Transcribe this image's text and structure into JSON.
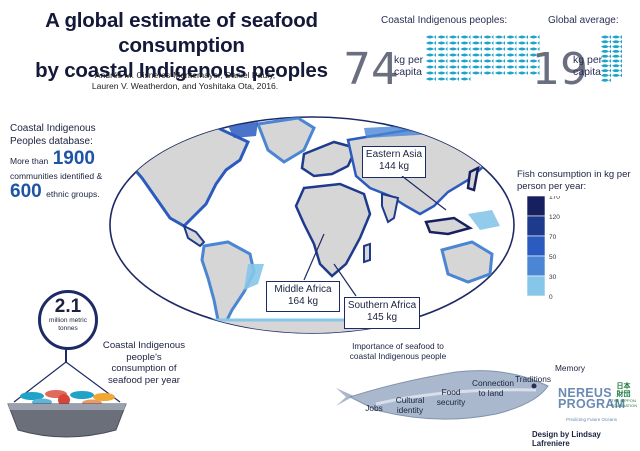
{
  "title_line1": "A global estimate of seafood consumption",
  "title_line2": "by coastal Indigenous peoples",
  "authors_line1": "Andrés M. Cisneros-Montemayor, Daniel Pauly,",
  "authors_line2": "Lauren V. Weatherdon, and Yoshitaka Ota, 2016.",
  "coastal": {
    "label": "Coastal Indigenous peoples:",
    "value": "74",
    "unit_line1": "kg per",
    "unit_line2": "capita"
  },
  "global": {
    "label": "Global average:",
    "value": "19",
    "unit_line1": "kg per",
    "unit_line2": "capita"
  },
  "database": {
    "title": "Coastal Indigenous Peoples database:",
    "line1_prefix": "More than",
    "communities": "1900",
    "line2": "communities identified &",
    "ethnic_groups": "600",
    "line3": "ethnic groups."
  },
  "callouts": {
    "eastern_asia": {
      "name": "Eastern Asia",
      "value": "144 kg"
    },
    "middle_africa": {
      "name": "Middle Africa",
      "value": "164 kg"
    },
    "southern_africa": {
      "name": "Southern Africa",
      "value": "145 kg"
    }
  },
  "legend": {
    "title": "Fish consumption in kg per person per year:",
    "ticks": [
      "170",
      "120",
      "70",
      "50",
      "30",
      "0"
    ],
    "colors": [
      "#16205e",
      "#1e3a8c",
      "#2c5bbf",
      "#4a86d4",
      "#86c6e8"
    ]
  },
  "total": {
    "value": "2.1",
    "unit_line1": "million metric",
    "unit_line2": "tonnes"
  },
  "consumption_text": "Coastal Indigenous people's consumption of seafood per year",
  "importance": {
    "title_line1": "Importance of seafood to",
    "title_line2": "coastal Indigenous people",
    "words": [
      "Jobs",
      "Cultural identity",
      "Food security",
      "Connection to land",
      "Traditions",
      "Memory"
    ]
  },
  "logos": {
    "nereus_line1": "NEREUS",
    "nereus_line2": "PROGRAM",
    "nereus_sub": "Predicting Future Oceans",
    "nippon_line1": "日本",
    "nippon_line2": "財団",
    "nippon_line3": "THE NIPPON",
    "nippon_line4": "FOUNDATION"
  },
  "credit": "Design by Lindsay Lafreniere",
  "colors": {
    "dark_navy": "#16205e",
    "fish_blue": "#1fa3c8",
    "land_gray": "#d6d6d6"
  },
  "chart_data": [
    {
      "type": "bar",
      "title": "",
      "categories": [
        "Coastal Indigenous peoples",
        "Global average"
      ],
      "values": [
        74,
        19
      ],
      "unit": "kg per capita"
    },
    {
      "type": "heatmap",
      "title": "Fish consumption in kg per person per year",
      "legend_bins": [
        0,
        30,
        50,
        70,
        120,
        170
      ],
      "highlighted_regions": [
        {
          "region": "Eastern Asia",
          "value": 144
        },
        {
          "region": "Middle Africa",
          "value": 164
        },
        {
          "region": "Southern Africa",
          "value": 145
        }
      ]
    }
  ]
}
